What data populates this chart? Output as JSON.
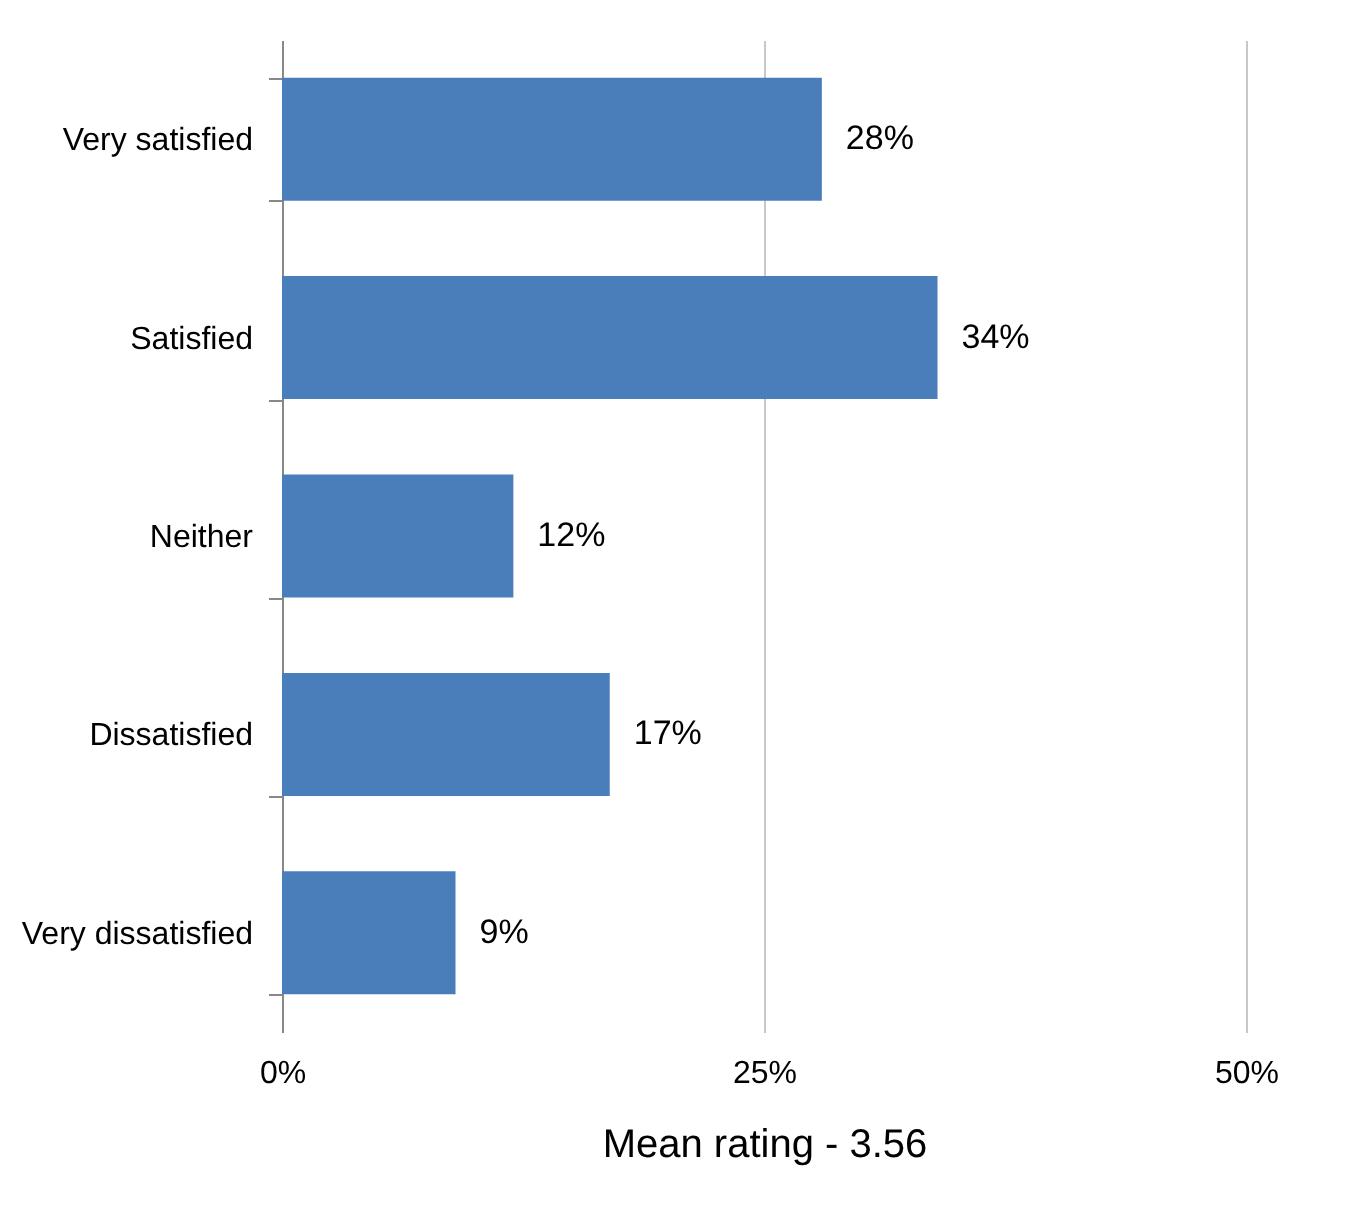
{
  "chart_data": {
    "type": "bar",
    "orientation": "horizontal",
    "xlabel": "Mean rating - 3.56",
    "categories": [
      "Very satisfied",
      "Satisfied",
      "Neither",
      "Dissatisfied",
      "Very dissatisfied"
    ],
    "values": [
      28,
      34,
      12,
      17,
      9
    ],
    "value_labels": [
      "28%",
      "34%",
      "12%",
      "17%",
      "9%"
    ],
    "color": "#4a7ebb",
    "xlim": [
      0,
      50
    ],
    "xticks": [
      {
        "value": 0,
        "label": "0%"
      },
      {
        "value": 25,
        "label": "25%"
      },
      {
        "value": 50,
        "label": "50%"
      }
    ],
    "grid": "x"
  }
}
